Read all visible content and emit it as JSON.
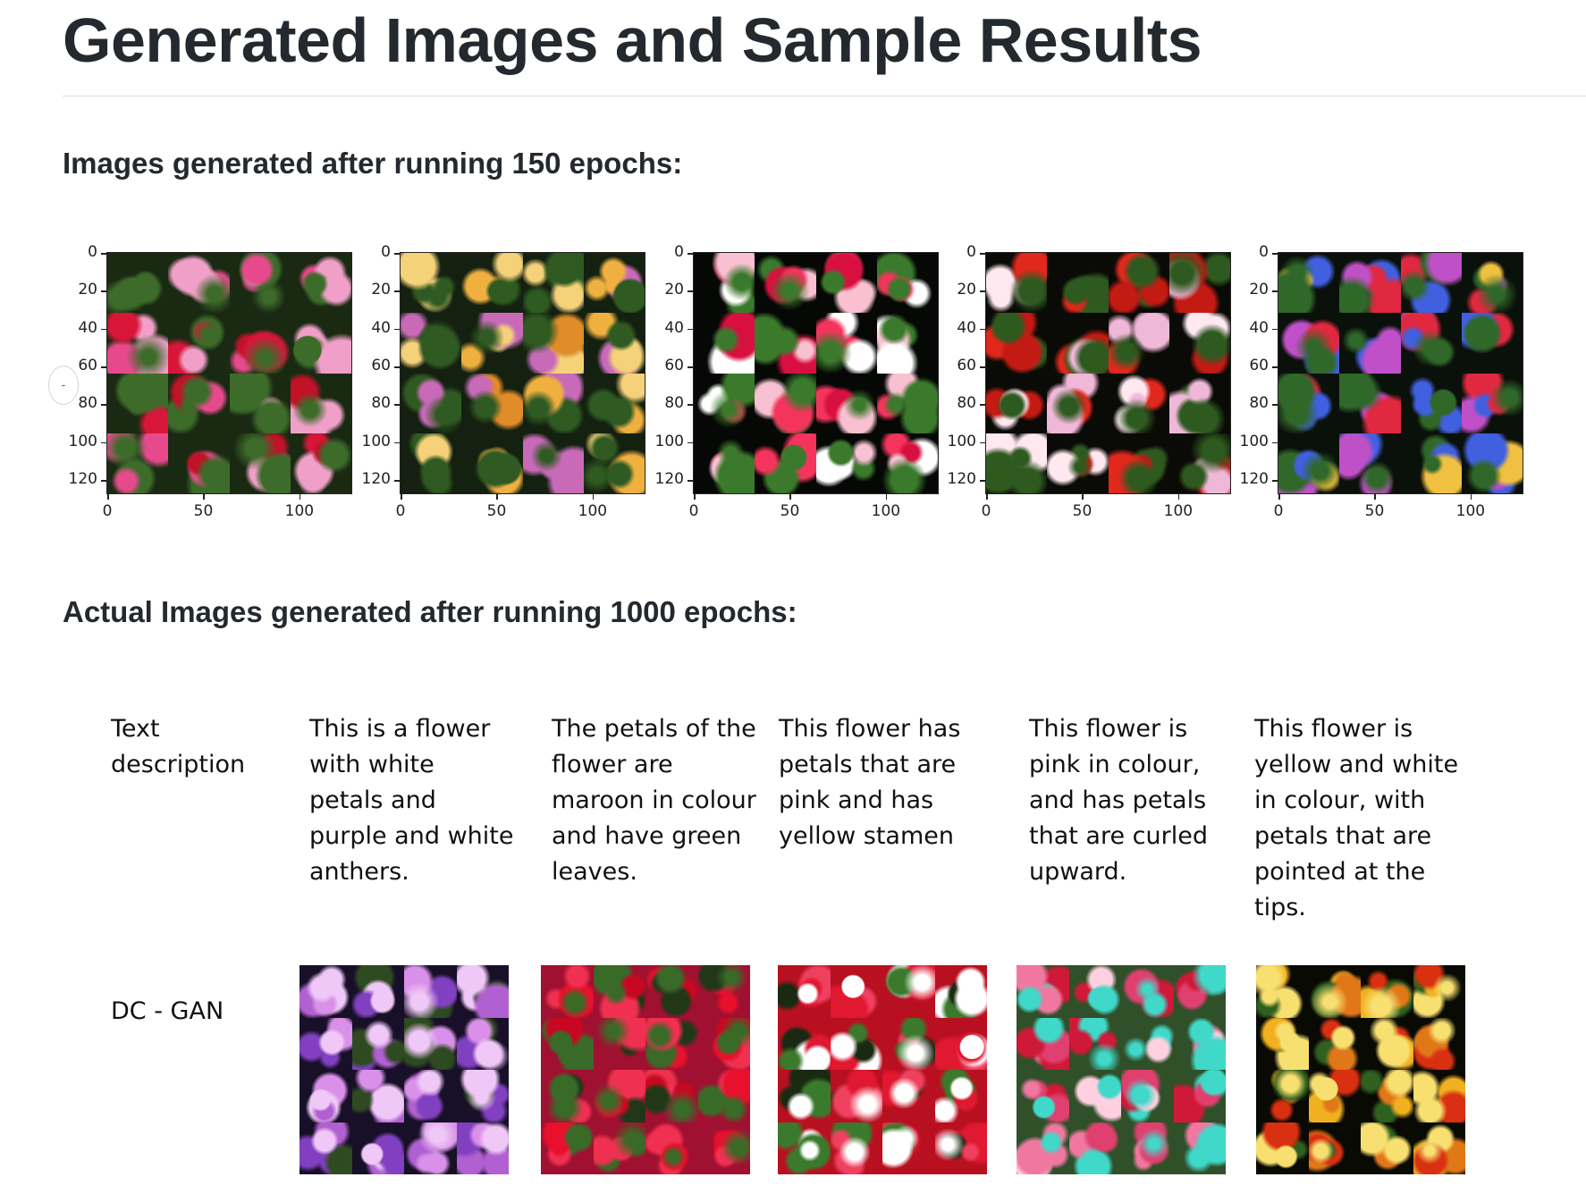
{
  "page": {
    "title": "Generated Images and Sample Results",
    "section_150": "Images generated after running 150 epochs:",
    "section_1000": "Actual Images generated after running 1000 epochs:"
  },
  "epoch150_plots": {
    "y_ticks": [
      "0",
      "20",
      "40",
      "60",
      "80",
      "100",
      "120"
    ],
    "x_ticks": [
      "0",
      "50",
      "100"
    ],
    "panels": [
      {
        "name": "plot-1",
        "palette": [
          "#d8163a",
          "#c21228",
          "#e64a8c",
          "#3d6b2a",
          "#f0a0c8",
          "#1a2a12"
        ]
      },
      {
        "name": "plot-2",
        "palette": [
          "#f0b040",
          "#e08c28",
          "#c86ab8",
          "#2f5a22",
          "#f5d27a",
          "#142010"
        ]
      },
      {
        "name": "plot-3",
        "palette": [
          "#f4345c",
          "#ffffff",
          "#d81040",
          "#3b7a2c",
          "#f8c0d0",
          "#050805"
        ]
      },
      {
        "name": "plot-4",
        "palette": [
          "#e0281c",
          "#c41a14",
          "#f0b8d8",
          "#2e5a20",
          "#ffe8f0",
          "#0a0a06"
        ]
      },
      {
        "name": "plot-5",
        "palette": [
          "#e02840",
          "#4060e0",
          "#f0c040",
          "#30682a",
          "#c050c8",
          "#0a100a"
        ]
      }
    ]
  },
  "results_table": {
    "row_labels": {
      "description": "Text description",
      "dcgan": "DC - GAN"
    },
    "descriptions": [
      "This is a flower with white petals and purple and white anthers.",
      "The petals of the flower are maroon in colour and have green leaves.",
      "This flower has petals that are pink and has yellow stamen",
      "This flower is pink in colour, and has petals that are curled upward.",
      "This flower is yellow and white in colour, with petals that are pointed at the tips."
    ],
    "images": [
      {
        "name": "dcgan-image-1",
        "palette": [
          "#d890e8",
          "#b060d0",
          "#8040c0",
          "#f0c8f8",
          "#2e4a20",
          "#181028"
        ]
      },
      {
        "name": "dcgan-image-2",
        "palette": [
          "#e8102c",
          "#c80820",
          "#f03050",
          "#3a6a28",
          "#203818",
          "#a01030"
        ]
      },
      {
        "name": "dcgan-image-3",
        "palette": [
          "#e01830",
          "#f04060",
          "#3b7a2c",
          "#ffffff",
          "#1a2a12",
          "#b81020"
        ]
      },
      {
        "name": "dcgan-image-4",
        "palette": [
          "#f078a0",
          "#e04070",
          "#ffd0e0",
          "#40d8c8",
          "#d01838",
          "#30502a"
        ]
      },
      {
        "name": "dcgan-image-5",
        "palette": [
          "#f0b020",
          "#e07818",
          "#d83010",
          "#f8e070",
          "#306020",
          "#0a0a04"
        ]
      }
    ]
  }
}
